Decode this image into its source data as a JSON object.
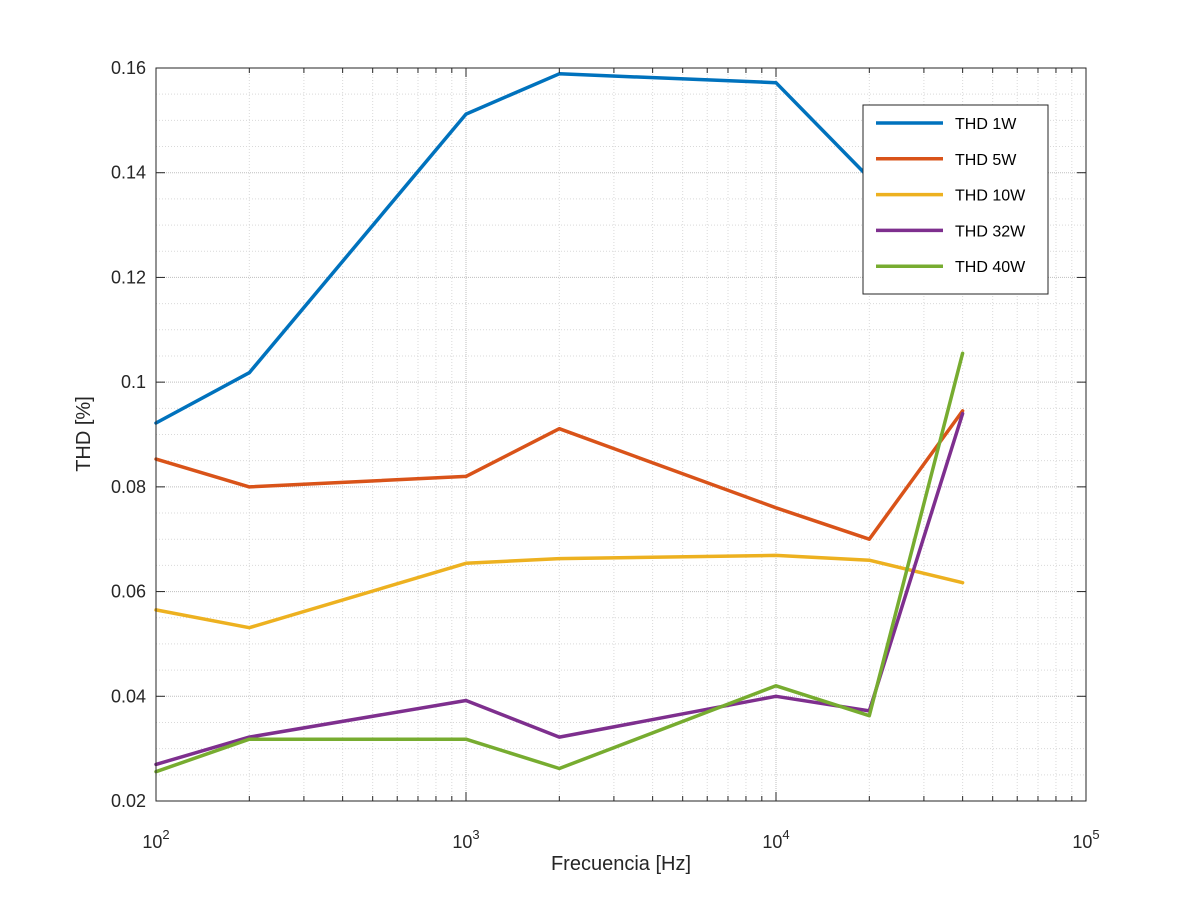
{
  "chart_data": {
    "type": "line",
    "title": "",
    "xlabel": "Frecuencia [Hz]",
    "ylabel": "THD [%]",
    "x_scale": "log",
    "xlim": [
      100,
      100000
    ],
    "ylim": [
      0.02,
      0.16
    ],
    "grid": true,
    "minor_grid": true,
    "legend_position": "top-right",
    "x": [
      100,
      200,
      1000,
      2000,
      10000,
      20000,
      40000
    ],
    "x_ticks": [
      {
        "base": "10",
        "exp": "2",
        "value": 100
      },
      {
        "base": "10",
        "exp": "3",
        "value": 1000
      },
      {
        "base": "10",
        "exp": "4",
        "value": 10000
      },
      {
        "base": "10",
        "exp": "5",
        "value": 100000
      }
    ],
    "y_ticks": [
      {
        "label": "0.02",
        "value": 0.02
      },
      {
        "label": "0.04",
        "value": 0.04
      },
      {
        "label": "0.06",
        "value": 0.06
      },
      {
        "label": "0.08",
        "value": 0.08
      },
      {
        "label": "0.1",
        "value": 0.1
      },
      {
        "label": "0.12",
        "value": 0.12
      },
      {
        "label": "0.14",
        "value": 0.14
      },
      {
        "label": "0.16",
        "value": 0.16
      }
    ],
    "series": [
      {
        "name": "THD 1W",
        "color": "#0072BD",
        "values": [
          0.0922,
          0.1018,
          0.1512,
          0.1589,
          0.1572,
          0.139,
          0.126
        ]
      },
      {
        "name": "THD 5W",
        "color": "#D95319",
        "values": [
          0.0853,
          0.08,
          0.082,
          0.0911,
          0.076,
          0.07,
          0.0945
        ]
      },
      {
        "name": "THD 10W",
        "color": "#EDB120",
        "values": [
          0.0565,
          0.0531,
          0.0654,
          0.0663,
          0.0669,
          0.066,
          0.0617
        ]
      },
      {
        "name": "THD 32W",
        "color": "#7E2F8E",
        "values": [
          0.027,
          0.0322,
          0.0392,
          0.0322,
          0.04,
          0.0372,
          0.094
        ]
      },
      {
        "name": "THD 40W",
        "color": "#77AC30",
        "values": [
          0.0256,
          0.0318,
          0.0318,
          0.0262,
          0.042,
          0.0363,
          0.1055
        ]
      }
    ]
  }
}
